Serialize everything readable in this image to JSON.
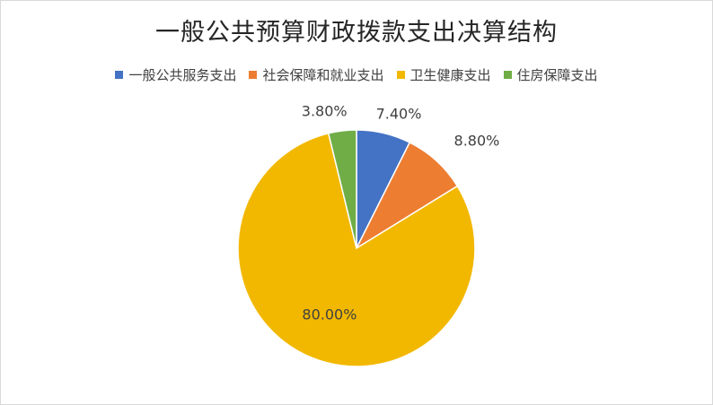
{
  "chart_data": {
    "type": "pie",
    "title": "一般公共预算财政拨款支出决算结构",
    "legend_position": "top",
    "series": [
      {
        "name": "一般公共服务支出",
        "value": 7.4,
        "label": "7.40%",
        "color": "#4472C4"
      },
      {
        "name": "社会保障和就业支出",
        "value": 8.8,
        "label": "8.80%",
        "color": "#ED7D31"
      },
      {
        "name": "卫生健康支出",
        "value": 80.0,
        "label": "80.00%",
        "color": "#F2B800"
      },
      {
        "name": "住房保障支出",
        "value": 3.8,
        "label": "3.80%",
        "color": "#70AD47"
      }
    ]
  }
}
